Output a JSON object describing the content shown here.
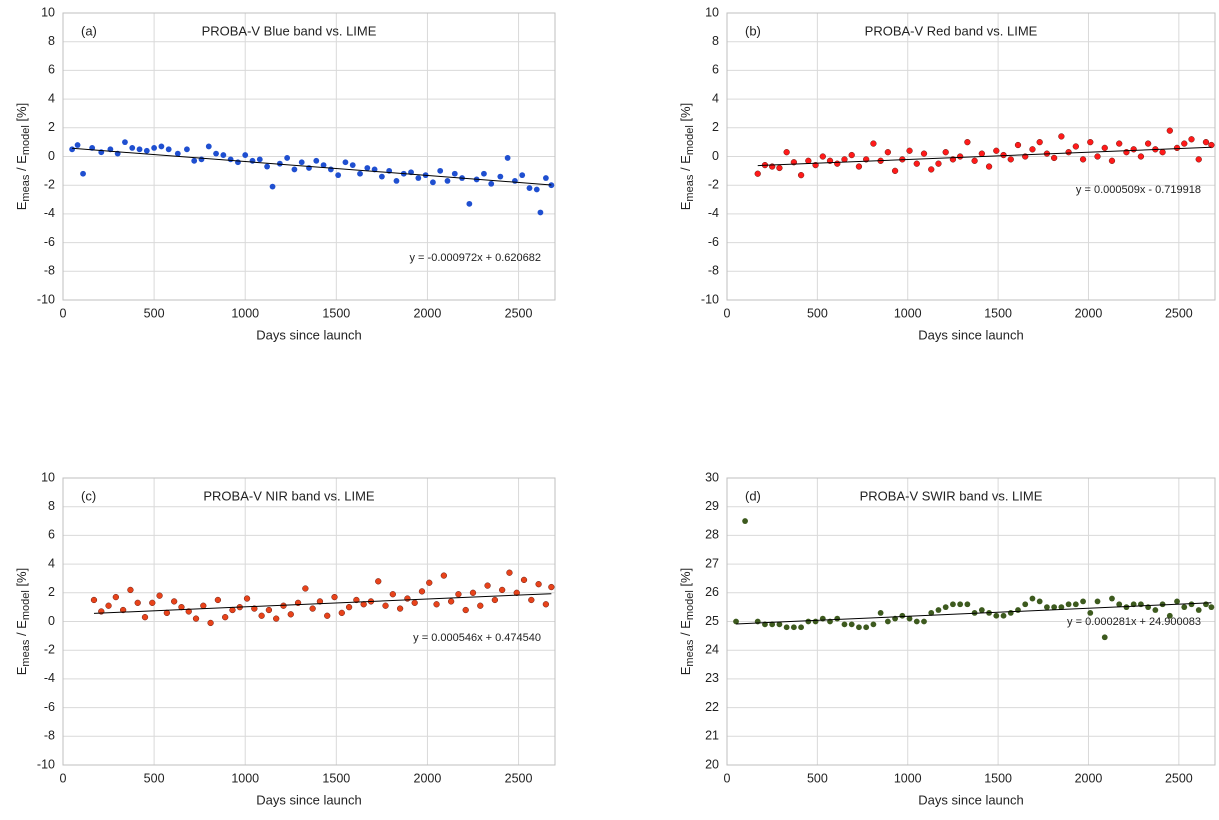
{
  "chart_data": [
    {
      "type": "scatter",
      "panel": "(a)",
      "title": "PROBA-V Blue band vs. LIME",
      "xlabel": "Days since launch",
      "ylabel": [
        "E",
        "meas",
        " / E",
        "model",
        " [%]"
      ],
      "xlim": [
        0,
        2700
      ],
      "xticks": [
        0,
        500,
        1000,
        1500,
        2000,
        2500
      ],
      "ylim": [
        -10,
        10
      ],
      "yticks": [
        -10,
        -8,
        -6,
        -4,
        -2,
        0,
        2,
        4,
        6,
        8,
        10
      ],
      "grid": true,
      "series": [
        {
          "color": "#1f4fd0",
          "x": [
            50,
            80,
            110,
            160,
            210,
            260,
            300,
            340,
            380,
            420,
            460,
            500,
            540,
            580,
            630,
            680,
            720,
            760,
            800,
            840,
            880,
            920,
            960,
            1000,
            1040,
            1080,
            1120,
            1150,
            1190,
            1230,
            1270,
            1310,
            1350,
            1390,
            1430,
            1470,
            1510,
            1550,
            1590,
            1630,
            1670,
            1710,
            1750,
            1790,
            1830,
            1870,
            1910,
            1950,
            1990,
            2030,
            2070,
            2110,
            2150,
            2190,
            2230,
            2270,
            2310,
            2350,
            2400,
            2440,
            2480,
            2520,
            2560,
            2600,
            2620,
            2650,
            2680
          ],
          "values": [
            0.5,
            0.8,
            -1.2,
            0.6,
            0.3,
            0.5,
            0.2,
            1.0,
            0.6,
            0.5,
            0.4,
            0.6,
            0.7,
            0.5,
            0.2,
            0.5,
            -0.3,
            -0.2,
            0.7,
            0.2,
            0.1,
            -0.2,
            -0.4,
            0.1,
            -0.3,
            -0.2,
            -0.7,
            -2.1,
            -0.5,
            -0.1,
            -0.9,
            -0.4,
            -0.8,
            -0.3,
            -0.6,
            -0.9,
            -1.3,
            -0.4,
            -0.6,
            -1.2,
            -0.8,
            -0.9,
            -1.4,
            -1.0,
            -1.7,
            -1.2,
            -1.1,
            -1.5,
            -1.3,
            -1.8,
            -1.0,
            -1.7,
            -1.2,
            -1.5,
            -3.3,
            -1.6,
            -1.2,
            -1.9,
            -1.4,
            -0.1,
            -1.7,
            -1.3,
            -2.2,
            -2.3,
            -3.9,
            -1.5,
            -2.0
          ]
        }
      ],
      "trendline": {
        "slope": -0.000972,
        "intercept": 0.620682,
        "label": "y = -0.000972x + 0.620682"
      }
    },
    {
      "type": "scatter",
      "panel": "(b)",
      "title": "PROBA-V Red band vs. LIME",
      "xlabel": "Days since launch",
      "ylabel": [
        "E",
        "meas",
        " / E",
        "model",
        " [%]"
      ],
      "xlim": [
        0,
        2700
      ],
      "xticks": [
        0,
        500,
        1000,
        1500,
        2000,
        2500
      ],
      "ylim": [
        -10,
        10
      ],
      "yticks": [
        -10,
        -8,
        -6,
        -4,
        -2,
        0,
        2,
        4,
        6,
        8,
        10
      ],
      "grid": true,
      "series": [
        {
          "color": "#ff1a1a",
          "x": [
            170,
            210,
            250,
            290,
            330,
            370,
            410,
            450,
            490,
            530,
            570,
            610,
            650,
            690,
            730,
            770,
            810,
            850,
            890,
            930,
            970,
            1010,
            1050,
            1090,
            1130,
            1170,
            1210,
            1250,
            1290,
            1330,
            1370,
            1410,
            1450,
            1490,
            1530,
            1570,
            1610,
            1650,
            1690,
            1730,
            1770,
            1810,
            1850,
            1890,
            1930,
            1970,
            2010,
            2050,
            2090,
            2130,
            2170,
            2210,
            2250,
            2290,
            2330,
            2370,
            2410,
            2450,
            2490,
            2530,
            2570,
            2610,
            2650,
            2680
          ],
          "values": [
            -1.2,
            -0.6,
            -0.7,
            -0.8,
            0.3,
            -0.4,
            -1.3,
            -0.3,
            -0.6,
            0.0,
            -0.3,
            -0.5,
            -0.2,
            0.1,
            -0.7,
            -0.2,
            0.9,
            -0.3,
            0.3,
            -1.0,
            -0.2,
            0.4,
            -0.5,
            0.2,
            -0.9,
            -0.5,
            0.3,
            -0.2,
            0.0,
            1.0,
            -0.3,
            0.2,
            -0.7,
            0.4,
            0.1,
            -0.2,
            0.8,
            0.0,
            0.5,
            1.0,
            0.2,
            -0.1,
            1.4,
            0.3,
            0.7,
            -0.2,
            1.0,
            0.0,
            0.6,
            -0.3,
            0.9,
            0.3,
            0.5,
            0.0,
            0.9,
            0.5,
            0.3,
            1.8,
            0.6,
            0.9,
            1.2,
            -0.2,
            1.0,
            0.8
          ]
        }
      ],
      "trendline": {
        "slope": 0.000509,
        "intercept": -0.719918,
        "label": "y = 0.000509x - 0.719918"
      }
    },
    {
      "type": "scatter",
      "panel": "(c)",
      "title": "PROBA-V NIR band vs. LIME",
      "xlabel": "Days since launch",
      "ylabel": [
        "E",
        "meas",
        " / E",
        "model",
        " [%]"
      ],
      "xlim": [
        0,
        2700
      ],
      "xticks": [
        0,
        500,
        1000,
        1500,
        2000,
        2500
      ],
      "ylim": [
        -10,
        10
      ],
      "yticks": [
        -10,
        -8,
        -6,
        -4,
        -2,
        0,
        2,
        4,
        6,
        8,
        10
      ],
      "grid": true,
      "series": [
        {
          "color": "#e8431a",
          "x": [
            170,
            210,
            250,
            290,
            330,
            370,
            410,
            450,
            490,
            530,
            570,
            610,
            650,
            690,
            730,
            770,
            810,
            850,
            890,
            930,
            970,
            1010,
            1050,
            1090,
            1130,
            1170,
            1210,
            1250,
            1290,
            1330,
            1370,
            1410,
            1450,
            1490,
            1530,
            1570,
            1610,
            1650,
            1690,
            1730,
            1770,
            1810,
            1850,
            1890,
            1930,
            1970,
            2010,
            2050,
            2090,
            2130,
            2170,
            2210,
            2250,
            2290,
            2330,
            2370,
            2410,
            2450,
            2490,
            2530,
            2570,
            2610,
            2650,
            2680
          ],
          "values": [
            1.5,
            0.7,
            1.1,
            1.7,
            0.8,
            2.2,
            1.3,
            0.3,
            1.3,
            1.8,
            0.6,
            1.4,
            1.0,
            0.7,
            0.2,
            1.1,
            -0.1,
            1.5,
            0.3,
            0.8,
            1.0,
            1.6,
            0.9,
            0.4,
            0.8,
            0.2,
            1.1,
            0.5,
            1.3,
            2.3,
            0.9,
            1.4,
            0.4,
            1.7,
            0.6,
            1.0,
            1.5,
            1.2,
            1.4,
            2.8,
            1.1,
            1.9,
            0.9,
            1.6,
            1.3,
            2.1,
            2.7,
            1.2,
            3.2,
            1.4,
            1.9,
            0.8,
            2.0,
            1.1,
            2.5,
            1.5,
            2.2,
            3.4,
            2.0,
            2.9,
            1.5,
            2.6,
            1.2,
            2.4
          ]
        }
      ],
      "trendline": {
        "slope": 0.000546,
        "intercept": 0.47454,
        "label": "y = 0.000546x + 0.474540"
      }
    },
    {
      "type": "scatter",
      "panel": "(d)",
      "title": "PROBA-V SWIR band vs. LIME",
      "xlabel": "Days since launch",
      "ylabel": [
        "E",
        "meas",
        " / E",
        "model",
        " [%]"
      ],
      "xlim": [
        0,
        2700
      ],
      "xticks": [
        0,
        500,
        1000,
        1500,
        2000,
        2500
      ],
      "ylim": [
        20,
        30
      ],
      "yticks": [
        20,
        21,
        22,
        23,
        24,
        25,
        26,
        27,
        28,
        29,
        30
      ],
      "grid": true,
      "series": [
        {
          "color": "#3d5a1e",
          "x": [
            50,
            100,
            170,
            210,
            250,
            290,
            330,
            370,
            410,
            450,
            490,
            530,
            570,
            610,
            650,
            690,
            730,
            770,
            810,
            850,
            890,
            930,
            970,
            1010,
            1050,
            1090,
            1130,
            1170,
            1210,
            1250,
            1290,
            1330,
            1370,
            1410,
            1450,
            1490,
            1530,
            1570,
            1610,
            1650,
            1690,
            1730,
            1770,
            1810,
            1850,
            1890,
            1930,
            1970,
            2010,
            2050,
            2090,
            2130,
            2170,
            2210,
            2250,
            2290,
            2330,
            2370,
            2410,
            2450,
            2490,
            2530,
            2570,
            2610,
            2650,
            2680
          ],
          "values": [
            25.0,
            28.5,
            25.0,
            24.9,
            24.9,
            24.9,
            24.8,
            24.8,
            24.8,
            25.0,
            25.0,
            25.1,
            25.0,
            25.1,
            24.9,
            24.9,
            24.8,
            24.8,
            24.9,
            25.3,
            25.0,
            25.1,
            25.2,
            25.1,
            25.0,
            25.0,
            25.3,
            25.4,
            25.5,
            25.6,
            25.6,
            25.6,
            25.3,
            25.4,
            25.3,
            25.2,
            25.2,
            25.3,
            25.4,
            25.6,
            25.8,
            25.7,
            25.5,
            25.5,
            25.5,
            25.6,
            25.6,
            25.7,
            25.3,
            25.7,
            24.45,
            25.8,
            25.6,
            25.5,
            25.6,
            25.6,
            25.5,
            25.4,
            25.6,
            25.2,
            25.7,
            25.5,
            25.6,
            25.4,
            25.6,
            25.5
          ]
        }
      ],
      "trendline": {
        "slope": 0.000281,
        "intercept": 24.900083,
        "label": "y = 0.000281x + 24.900083"
      }
    }
  ]
}
